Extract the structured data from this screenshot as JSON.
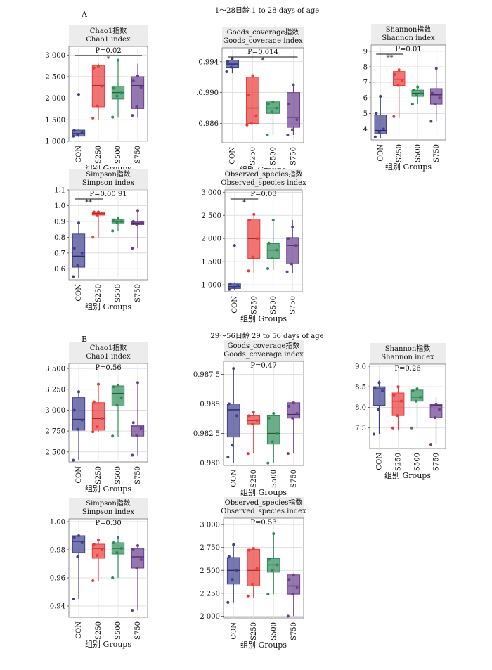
{
  "sections": [
    {
      "label": "A",
      "title": "1～28日龄  1 to 28 days of age"
    },
    {
      "label": "B",
      "title": "29～56日龄  29 to 56 days of age"
    }
  ],
  "colors": {
    "CON": "#3f3f8f",
    "S250": "#e83a3a",
    "S500": "#2e8b57",
    "S750": "#6a3d8f"
  },
  "chart_data": [
    {
      "type": "box",
      "section": "A",
      "title": "Chao1指数",
      "subtitle": "Chao1 index",
      "p_text": "P=0.02",
      "categories": [
        "CON",
        "S250",
        "S500",
        "S750"
      ],
      "xlabel": "组别 Groups",
      "ylim": [
        1000,
        3200
      ],
      "ticks": [
        1000,
        1500,
        2000,
        2500,
        3000
      ],
      "tick_labels": [
        "1 000",
        "1 500",
        "2 000",
        "2 500",
        "3 000"
      ],
      "boxes": [
        {
          "min": 1100,
          "q1": 1120,
          "median": 1180,
          "q3": 1260,
          "max": 1280
        },
        {
          "min": 1500,
          "q1": 1800,
          "median": 2290,
          "q3": 2760,
          "max": 2800
        },
        {
          "min": 1550,
          "q1": 1980,
          "median": 2130,
          "q3": 2280,
          "max": 2880
        },
        {
          "min": 1550,
          "q1": 1760,
          "median": 2290,
          "q3": 2500,
          "max": 2800
        }
      ],
      "points": [
        [
          1120,
          1150,
          1200,
          1250,
          2090
        ],
        [
          1540,
          1820,
          2280,
          2700,
          2730
        ],
        [
          1560,
          2050,
          2120,
          2230,
          2880
        ],
        [
          1600,
          1800,
          2250,
          2400,
          2520
        ]
      ],
      "sig": [
        {
          "from": 0,
          "to": 3,
          "label": "*"
        }
      ]
    },
    {
      "type": "box",
      "section": "A",
      "title": "Goods_coverage指数",
      "subtitle": "Goods_coverage index",
      "p_text": "P=0.014",
      "categories": [
        "CON",
        "S250",
        "S500",
        "S750"
      ],
      "xlabel": "组别 Groups",
      "ylim": [
        0.9835,
        0.9958
      ],
      "ticks": [
        0.986,
        0.99,
        0.994
      ],
      "tick_labels": [
        "0.986",
        ".0.990",
        "0.994"
      ],
      "boxes": [
        {
          "min": 0.9925,
          "q1": 0.9932,
          "median": 0.9937,
          "q3": 0.9942,
          "max": 0.9944
        },
        {
          "min": 0.986,
          "q1": 0.986,
          "median": 0.988,
          "q3": 0.992,
          "max": 0.9922
        },
        {
          "min": 0.9845,
          "q1": 0.9873,
          "median": 0.988,
          "q3": 0.9888,
          "max": 0.989
        },
        {
          "min": 0.9845,
          "q1": 0.9855,
          "median": 0.9868,
          "q3": 0.99,
          "max": 0.9912
        }
      ],
      "points": [
        [
          0.9927,
          0.9933,
          0.9937,
          0.994,
          0.9944
        ],
        [
          0.9858,
          0.986,
          0.987,
          0.9897,
          0.9922
        ],
        [
          0.9845,
          0.9875,
          0.988,
          0.9885,
          0.9888
        ],
        [
          0.9845,
          0.9852,
          0.9865,
          0.9885,
          0.991
        ]
      ],
      "sig": [
        {
          "from": 0,
          "to": 3,
          "label": "*"
        }
      ]
    },
    {
      "type": "box",
      "section": "A",
      "title": "Shannon指数",
      "subtitle": "Shannon index",
      "p_text": "P=0.01",
      "categories": [
        "CON",
        "S250",
        "S500",
        "S750"
      ],
      "xlabel": "组别 Groups",
      "ylim": [
        3.3,
        9.4
      ],
      "ticks": [
        4,
        5,
        6,
        7,
        8,
        9
      ],
      "tick_labels": [
        "4",
        "5",
        "6",
        "7",
        "8",
        "9"
      ],
      "boxes": [
        {
          "min": 3.4,
          "q1": 3.7,
          "median": 3.9,
          "q3": 4.9,
          "max": 6.2
        },
        {
          "min": 4.7,
          "q1": 6.8,
          "median": 7.2,
          "q3": 7.7,
          "max": 7.9
        },
        {
          "min": 5.6,
          "q1": 6.1,
          "median": 6.3,
          "q3": 6.5,
          "max": 6.8
        },
        {
          "min": 4.5,
          "q1": 5.6,
          "median": 6.2,
          "q3": 6.6,
          "max": 7.9
        }
      ],
      "points": [
        [
          3.5,
          3.8,
          4.0,
          5.0,
          6.1
        ],
        [
          4.8,
          6.8,
          7.1,
          7.5,
          7.8
        ],
        [
          5.6,
          6.2,
          6.3,
          6.5,
          6.7
        ],
        [
          4.5,
          5.6,
          6.0,
          6.3,
          7.9
        ]
      ],
      "sig": [
        {
          "from": 0,
          "to": 1,
          "label": "**"
        }
      ]
    },
    {
      "type": "box",
      "section": "A",
      "title": "Simpson指数",
      "subtitle": "Simpson index",
      "p_text": "P=0.00 91",
      "categories": [
        "CON",
        "S250",
        "S500",
        "S750"
      ],
      "xlabel": "组别 Groups",
      "ylim": [
        0.53,
        1.1
      ],
      "ticks": [
        0.6,
        0.7,
        0.8,
        0.9,
        1.0,
        1.1
      ],
      "tick_labels": [
        "0.6",
        "0.7",
        "0.8",
        "0.9",
        "1.0",
        "1.1"
      ],
      "boxes": [
        {
          "min": 0.54,
          "q1": 0.61,
          "median": 0.68,
          "q3": 0.82,
          "max": 0.89
        },
        {
          "min": 0.8,
          "q1": 0.94,
          "median": 0.95,
          "q3": 0.96,
          "max": 0.97
        },
        {
          "min": 0.84,
          "q1": 0.89,
          "median": 0.9,
          "q3": 0.91,
          "max": 0.92
        },
        {
          "min": 0.73,
          "q1": 0.88,
          "median": 0.89,
          "q3": 0.9,
          "max": 0.97
        }
      ],
      "points": [
        [
          0.55,
          0.62,
          0.7,
          0.73,
          0.89
        ],
        [
          0.8,
          0.94,
          0.95,
          0.96,
          0.96
        ],
        [
          0.84,
          0.89,
          0.9,
          0.91,
          0.92
        ],
        [
          0.73,
          0.88,
          0.89,
          0.9,
          0.97
        ]
      ],
      "sig": [
        {
          "from": 0,
          "to": 1,
          "label": "**"
        }
      ]
    },
    {
      "type": "box",
      "section": "A",
      "title": "Observed_species指数",
      "subtitle": "Observed_species index",
      "p_text": "P=0.03",
      "categories": [
        "CON",
        "S250",
        "S500",
        "S750"
      ],
      "xlabel": "组别 Groups",
      "ylim": [
        850,
        3050
      ],
      "ticks": [
        1000,
        1500,
        2000,
        2500,
        3000
      ],
      "tick_labels": [
        "1 000",
        "1 500",
        "2 000",
        "2 500",
        "3 000"
      ],
      "boxes": [
        {
          "min": 880,
          "q1": 920,
          "median": 960,
          "q3": 1020,
          "max": 1050
        },
        {
          "min": 1250,
          "q1": 1570,
          "median": 2000,
          "q3": 2420,
          "max": 2520
        },
        {
          "min": 1320,
          "q1": 1570,
          "median": 1750,
          "q3": 1890,
          "max": 2400
        },
        {
          "min": 1250,
          "q1": 1450,
          "median": 1850,
          "q3": 2020,
          "max": 2400
        }
      ],
      "points": [
        [
          900,
          950,
          980,
          1020,
          1850
        ],
        [
          1300,
          1600,
          2000,
          2400,
          2520
        ],
        [
          1350,
          1580,
          1750,
          1900,
          2400
        ],
        [
          1280,
          1450,
          1850,
          2000,
          2250
        ]
      ],
      "sig": [
        {
          "from": 0,
          "to": 1,
          "label": "*"
        }
      ]
    },
    {
      "type": "box",
      "section": "B",
      "title": "Chao1指数",
      "subtitle": "Chao1 index",
      "p_text": "P=0.56",
      "categories": [
        "CON",
        "S250",
        "S500",
        "S750"
      ],
      "xlabel": "组别 Groups",
      "ylim": [
        2380,
        3560
      ],
      "ticks": [
        2500,
        2750,
        3000,
        3250,
        3500
      ],
      "tick_labels": [
        "2 500",
        "2 750",
        "3 000",
        "3 250",
        "3 500"
      ],
      "boxes": [
        {
          "min": 2400,
          "q1": 2760,
          "median": 2890,
          "q3": 3150,
          "max": 3240
        },
        {
          "min": 2740,
          "q1": 2760,
          "median": 2900,
          "q3": 3090,
          "max": 3320
        },
        {
          "min": 2680,
          "q1": 3050,
          "median": 3200,
          "q3": 3290,
          "max": 3310
        },
        {
          "min": 2460,
          "q1": 2690,
          "median": 2800,
          "q3": 2820,
          "max": 3340
        }
      ],
      "points": [
        [
          2400,
          2770,
          2880,
          3000,
          3220
        ],
        [
          2740,
          2800,
          2900,
          3100,
          3310
        ],
        [
          2690,
          3060,
          3150,
          3280,
          3300
        ],
        [
          2460,
          2700,
          2780,
          2850,
          3330
        ]
      ],
      "sig": []
    },
    {
      "type": "box",
      "section": "B",
      "title": "Goods_coverage指数",
      "subtitle": "Goods_coverage index",
      "p_text": "P=0.47",
      "categories": [
        "CON",
        "S250",
        "S500",
        "S750"
      ],
      "xlabel": "组别 Groups",
      "ylim": [
        0.9798,
        0.9886
      ],
      "ticks": [
        0.98,
        0.9825,
        0.985,
        0.9875
      ],
      "tick_labels": [
        "0.980",
        "0.982 5",
        "0.985",
        "0.987 5"
      ],
      "boxes": [
        {
          "min": 0.98,
          "q1": 0.9822,
          "median": 0.9845,
          "q3": 0.985,
          "max": 0.988
        },
        {
          "min": 0.9808,
          "q1": 0.9833,
          "median": 0.9836,
          "q3": 0.984,
          "max": 0.9843
        },
        {
          "min": 0.98,
          "q1": 0.9816,
          "median": 0.9825,
          "q3": 0.984,
          "max": 0.9842
        },
        {
          "min": 0.9808,
          "q1": 0.9838,
          "median": 0.9841,
          "q3": 0.9851,
          "max": 0.9851
        }
      ],
      "points": [
        [
          0.9805,
          0.9815,
          0.984,
          0.985,
          0.988
        ],
        [
          0.9808,
          0.9833,
          0.9836,
          0.984,
          0.9843
        ],
        [
          0.98,
          0.9818,
          0.9825,
          0.9838,
          0.9842
        ],
        [
          0.9808,
          0.9838,
          0.9842,
          0.9848,
          0.9851
        ]
      ],
      "sig": []
    },
    {
      "type": "box",
      "section": "B",
      "title": "Shannon指数",
      "subtitle": "Shannon index",
      "p_text": "P=0.26",
      "categories": [
        "CON",
        "S250",
        "S500",
        "S750"
      ],
      "xlabel": "组别 Groups",
      "ylim": [
        7.0,
        9.05
      ],
      "ticks": [
        7.5,
        8.0,
        8.5,
        9.0
      ],
      "tick_labels": [
        "7.5",
        "8.0",
        "8.5",
        "9.0"
      ],
      "boxes": [
        {
          "min": 7.35,
          "q1": 8.05,
          "median": 8.45,
          "q3": 8.5,
          "max": 8.65
        },
        {
          "min": 7.45,
          "q1": 7.8,
          "median": 8.15,
          "q3": 8.35,
          "max": 8.5
        },
        {
          "min": 7.5,
          "q1": 8.15,
          "median": 8.25,
          "q3": 8.42,
          "max": 8.45
        },
        {
          "min": 7.1,
          "q1": 7.75,
          "median": 8.05,
          "q3": 8.08,
          "max": 8.25
        }
      ],
      "points": [
        [
          7.35,
          7.95,
          8.4,
          8.48,
          8.6
        ],
        [
          7.5,
          7.8,
          8.15,
          8.3,
          8.5
        ],
        [
          7.5,
          8.15,
          8.25,
          8.4,
          8.45
        ],
        [
          7.1,
          7.75,
          7.95,
          8.05,
          8.08
        ]
      ],
      "sig": []
    },
    {
      "type": "box",
      "section": "B",
      "title": "Simpson指数",
      "subtitle": "Simpson index",
      "p_text": "P=0.30",
      "categories": [
        "CON",
        "S250",
        "S500",
        "S750"
      ],
      "xlabel": "组别 Groups",
      "ylim": [
        0.932,
        1.002
      ],
      "ticks": [
        0.94,
        0.96,
        0.98,
        1.0
      ],
      "tick_labels": [
        "0.94",
        "0.96",
        "0.98",
        "1.00"
      ],
      "boxes": [
        {
          "min": 0.945,
          "q1": 0.978,
          "median": 0.986,
          "q3": 0.99,
          "max": 0.991
        },
        {
          "min": 0.958,
          "q1": 0.974,
          "median": 0.981,
          "q3": 0.984,
          "max": 0.987
        },
        {
          "min": 0.96,
          "q1": 0.977,
          "median": 0.981,
          "q3": 0.985,
          "max": 0.989
        },
        {
          "min": 0.937,
          "q1": 0.967,
          "median": 0.975,
          "q3": 0.981,
          "max": 0.984
        }
      ],
      "points": [
        [
          0.945,
          0.975,
          0.985,
          0.989,
          0.99
        ],
        [
          0.958,
          0.976,
          0.98,
          0.984,
          0.987
        ],
        [
          0.96,
          0.978,
          0.981,
          0.985,
          0.989
        ],
        [
          0.937,
          0.967,
          0.973,
          0.98,
          0.983
        ]
      ],
      "sig": []
    },
    {
      "type": "box",
      "section": "B",
      "title": "Observed_species指数",
      "subtitle": "Observed_species index",
      "p_text": "P=0.53",
      "categories": [
        "CON",
        "S250",
        "S500",
        "S750"
      ],
      "xlabel": "组别 Groups",
      "ylim": [
        1980,
        3070
      ],
      "ticks": [
        2000,
        2250,
        2500,
        2750,
        3000
      ],
      "tick_labels": [
        "2 000",
        "2 250",
        "2 500",
        "2 750",
        "3 000"
      ],
      "boxes": [
        {
          "min": 2150,
          "q1": 2350,
          "median": 2500,
          "q3": 2640,
          "max": 2790
        },
        {
          "min": 2200,
          "q1": 2330,
          "median": 2500,
          "q3": 2730,
          "max": 2740
        },
        {
          "min": 2240,
          "q1": 2480,
          "median": 2560,
          "q3": 2630,
          "max": 2900
        },
        {
          "min": 2000,
          "q1": 2240,
          "median": 2330,
          "q3": 2450,
          "max": 2450
        }
      ],
      "points": [
        [
          2150,
          2400,
          2500,
          2650,
          2780
        ],
        [
          2220,
          2350,
          2520,
          2720,
          2740
        ],
        [
          2240,
          2500,
          2560,
          2620,
          2900
        ],
        [
          2000,
          2240,
          2310,
          2400,
          2450
        ]
      ],
      "sig": []
    }
  ]
}
